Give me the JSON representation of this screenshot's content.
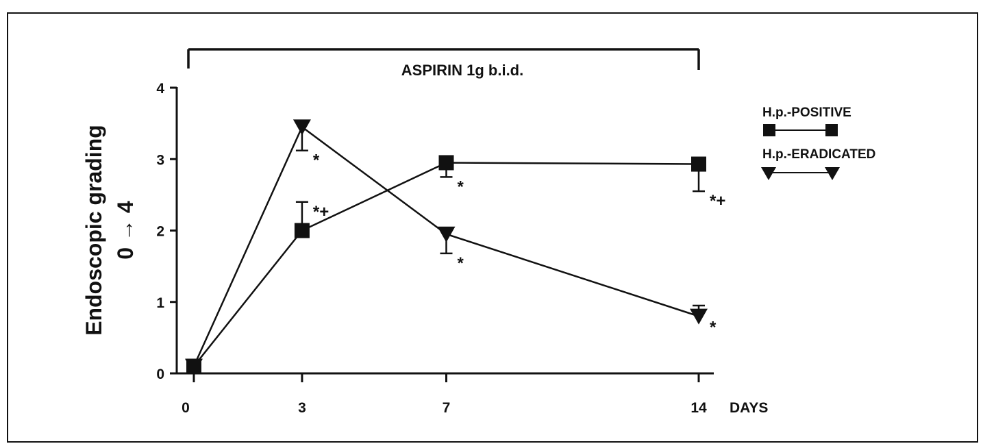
{
  "chart_data": {
    "type": "line",
    "treatment_label": "ASPIRIN 1g b.i.d.",
    "ylabel_line1": "Endoscopic grading",
    "ylabel_line2": "0 → 4",
    "xlabel": "DAYS",
    "x": [
      0,
      3,
      7,
      14
    ],
    "x_ticks": [
      "0",
      "3",
      "7",
      "14"
    ],
    "y_ticks": [
      "0",
      "1",
      "2",
      "3",
      "4"
    ],
    "ylim": [
      0,
      4
    ],
    "series": [
      {
        "name": "H.p.-POSITIVE",
        "marker": "square",
        "values": [
          0.1,
          2.0,
          2.95,
          2.93
        ],
        "error_upper": [
          0.0,
          0.4,
          0.0,
          0.0
        ],
        "error_lower": [
          0.0,
          0.0,
          0.2,
          0.38
        ],
        "annotations": [
          "",
          "*+",
          "*",
          "*+"
        ]
      },
      {
        "name": "H.p.-ERADICATED",
        "marker": "triangle-down",
        "values": [
          0.1,
          3.45,
          1.95,
          0.8
        ],
        "error_upper": [
          0.0,
          0.0,
          0.0,
          0.15
        ],
        "error_lower": [
          0.0,
          0.33,
          0.27,
          0.0
        ],
        "annotations": [
          "",
          "*",
          "*",
          "*"
        ]
      }
    ],
    "legend_position": "right",
    "colors": {
      "ink": "#111111"
    }
  }
}
